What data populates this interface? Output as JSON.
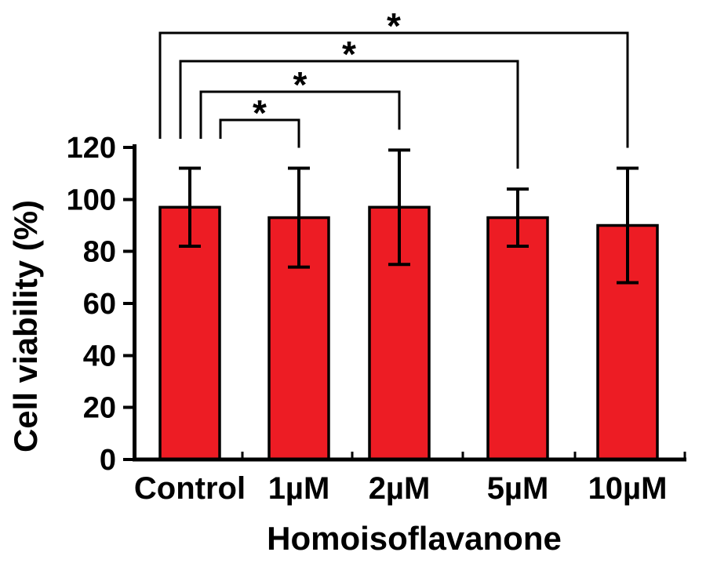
{
  "figure": {
    "background_color": "#ffffff",
    "bar_color": "#ED1C24",
    "line_color": "#000000"
  },
  "chart_data": {
    "type": "bar",
    "title": "",
    "categories": [
      "Control",
      "1µM",
      "2µM",
      "5µM",
      "10µM"
    ],
    "values": [
      97,
      93,
      97,
      93,
      90
    ],
    "error_up": [
      15,
      19,
      22,
      11,
      22
    ],
    "error_down": [
      15,
      19,
      22,
      11,
      22
    ],
    "xlabel": "Homoisoflavanone",
    "ylabel": "Cell viability (%)",
    "ylim": [
      0,
      120
    ],
    "yticks": [
      0,
      20,
      40,
      60,
      80,
      100,
      120
    ],
    "grid": false,
    "legend": null,
    "significance_brackets": [
      {
        "from": "Control",
        "to": "10µM",
        "label": "*"
      },
      {
        "from": "Control",
        "to": "5µM",
        "label": "*"
      },
      {
        "from": "Control",
        "to": "2µM",
        "label": "*"
      },
      {
        "from": "Control",
        "to": "1µM",
        "label": "*"
      }
    ]
  }
}
